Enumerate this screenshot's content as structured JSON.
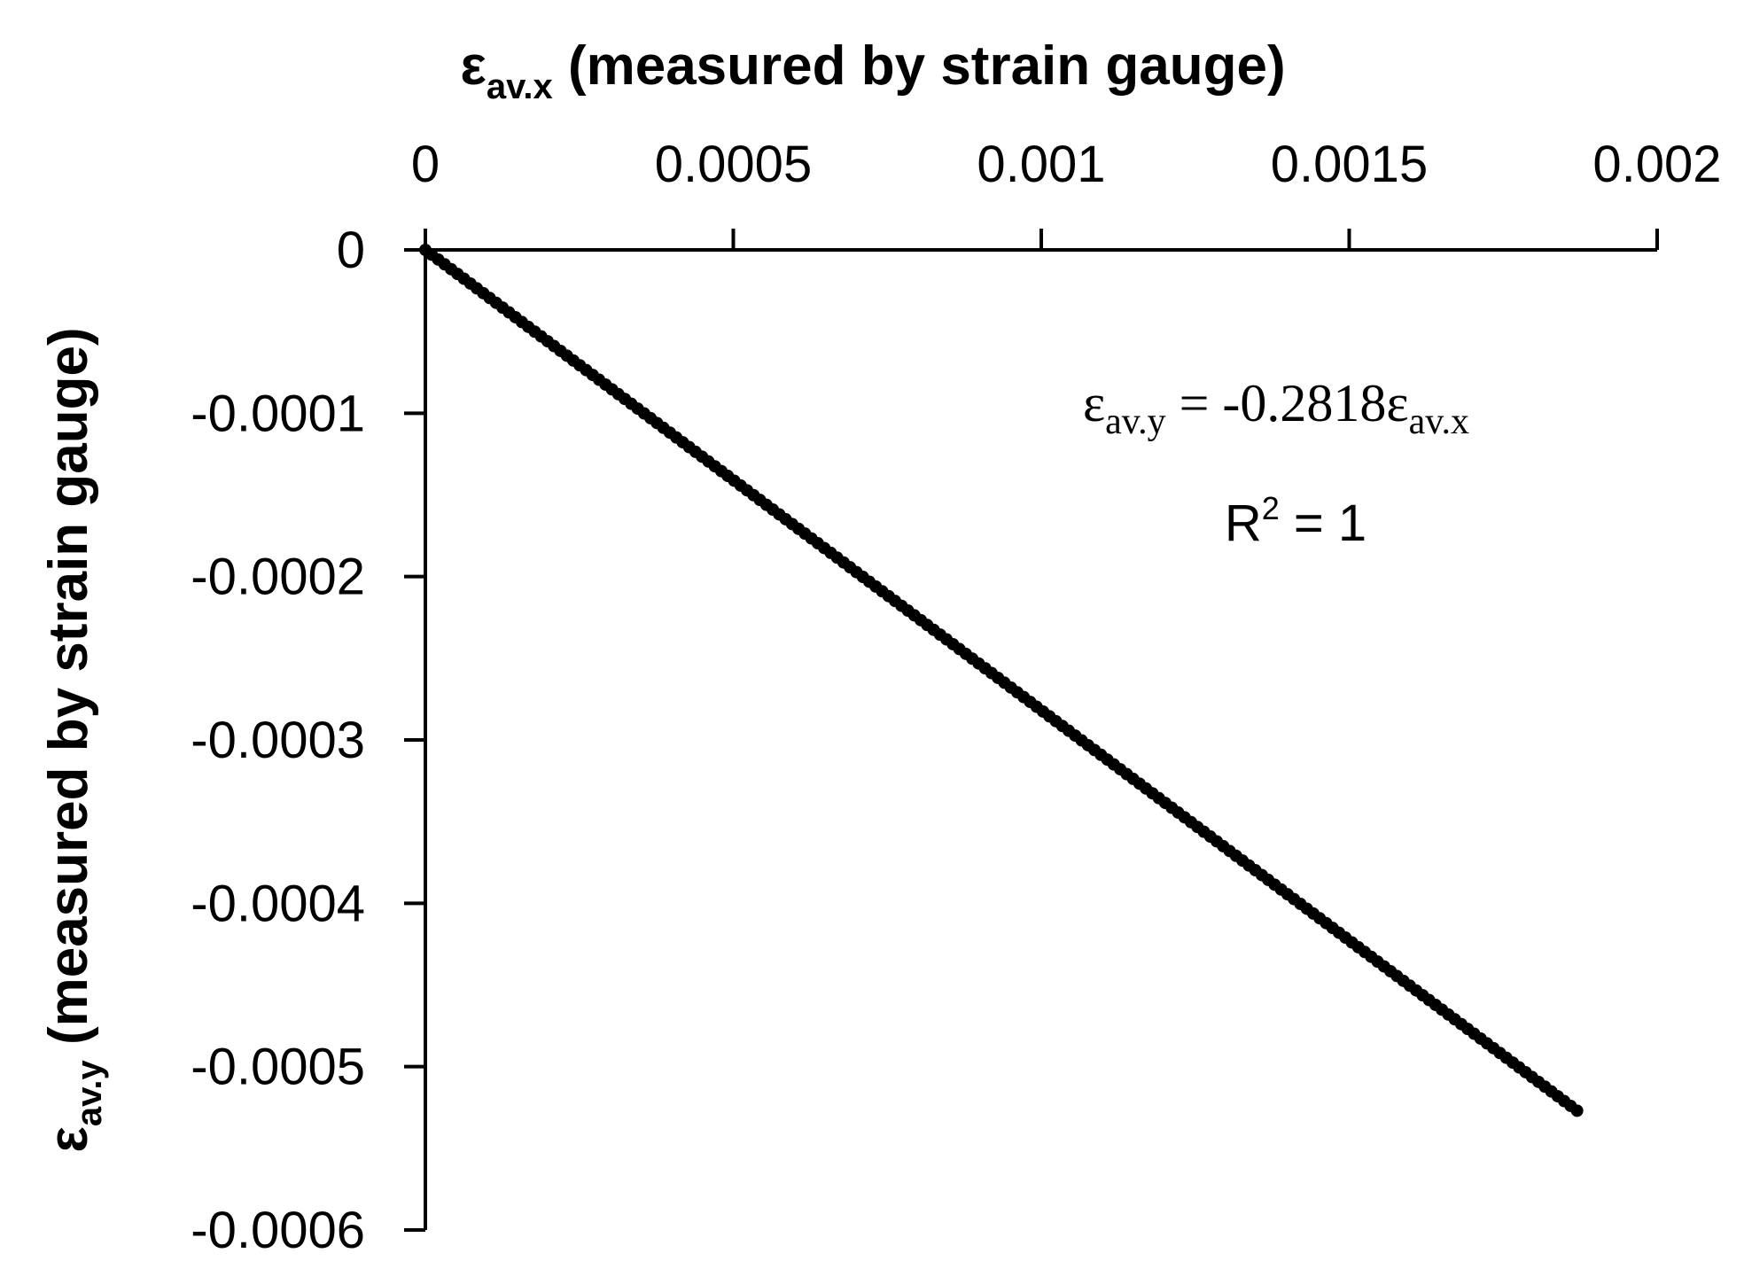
{
  "chart_data": {
    "type": "scatter",
    "xlabel": {
      "symbol": "ε",
      "subscript": "av.x",
      "rest": " (measured by strain gauge)"
    },
    "ylabel": {
      "symbol": "ε",
      "subscript": "av.y",
      "rest": " (measured by strain gauge)"
    },
    "x_axis_position": "top",
    "xlim": [
      0,
      0.002
    ],
    "ylim": [
      -0.0006,
      0
    ],
    "x_ticks": [
      0,
      0.0005,
      0.001,
      0.0015,
      0.002
    ],
    "x_tick_labels": [
      "0",
      "0.0005",
      "0.001",
      "0.0015",
      "0.002"
    ],
    "y_ticks": [
      0,
      -0.0001,
      -0.0002,
      -0.0003,
      -0.0004,
      -0.0005,
      -0.0006
    ],
    "y_tick_labels": [
      "0",
      "-0.0001",
      "-0.0002",
      "-0.0003",
      "-0.0004",
      "-0.0005",
      "-0.0006"
    ],
    "grid": false,
    "series": [
      {
        "color": "#000000",
        "slope": -0.2818,
        "x_start": 0,
        "x_end": 0.00187,
        "point_count": 180
      }
    ],
    "annotations": {
      "equation": {
        "lhs_symbol": "ε",
        "lhs_sub": "av.y",
        "middle": " = -0.2818",
        "rhs_symbol": "ε",
        "rhs_sub": "av.x"
      },
      "r_squared": {
        "base": "R",
        "exp": "2",
        "rest": " = 1"
      }
    }
  }
}
